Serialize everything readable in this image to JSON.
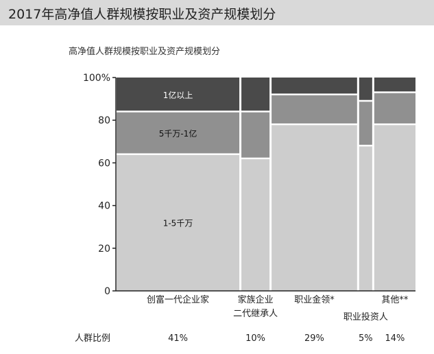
{
  "header": {
    "title": "2017年高净值人群规模按职业及资产规模划分"
  },
  "chart_data": {
    "type": "bar",
    "subtype": "marimekko",
    "title": "高净值人群规模按职业及资产规模划分",
    "y_ticks": [
      "0",
      "20",
      "40",
      "60",
      "80",
      "100%"
    ],
    "ylim": [
      0,
      100
    ],
    "segment_names": [
      "1-5千万",
      "5千万-1亿",
      "1亿以上"
    ],
    "segment_colors": [
      "#cdcdcd",
      "#909090",
      "#4a4a4a"
    ],
    "categories": [
      {
        "name_lines": [
          "创富一代企业家"
        ],
        "share": 41,
        "share_label": "41%",
        "segments": [
          64,
          20,
          16
        ]
      },
      {
        "name_lines": [
          "家族企业",
          "二代继承人"
        ],
        "share": 10,
        "share_label": "10%",
        "segments": [
          62,
          22,
          16
        ]
      },
      {
        "name_lines": [
          "职业金领*"
        ],
        "share": 29,
        "share_label": "29%",
        "segments": [
          78,
          14,
          8
        ]
      },
      {
        "name_lines": [
          "职业投资人"
        ],
        "share": 5,
        "share_label": "5%",
        "segments": [
          68,
          21,
          11
        ]
      },
      {
        "name_lines": [
          "其他**"
        ],
        "share": 14,
        "share_label": "14%",
        "segments": [
          78,
          15,
          7
        ]
      }
    ],
    "share_row_label": "人群比例"
  }
}
